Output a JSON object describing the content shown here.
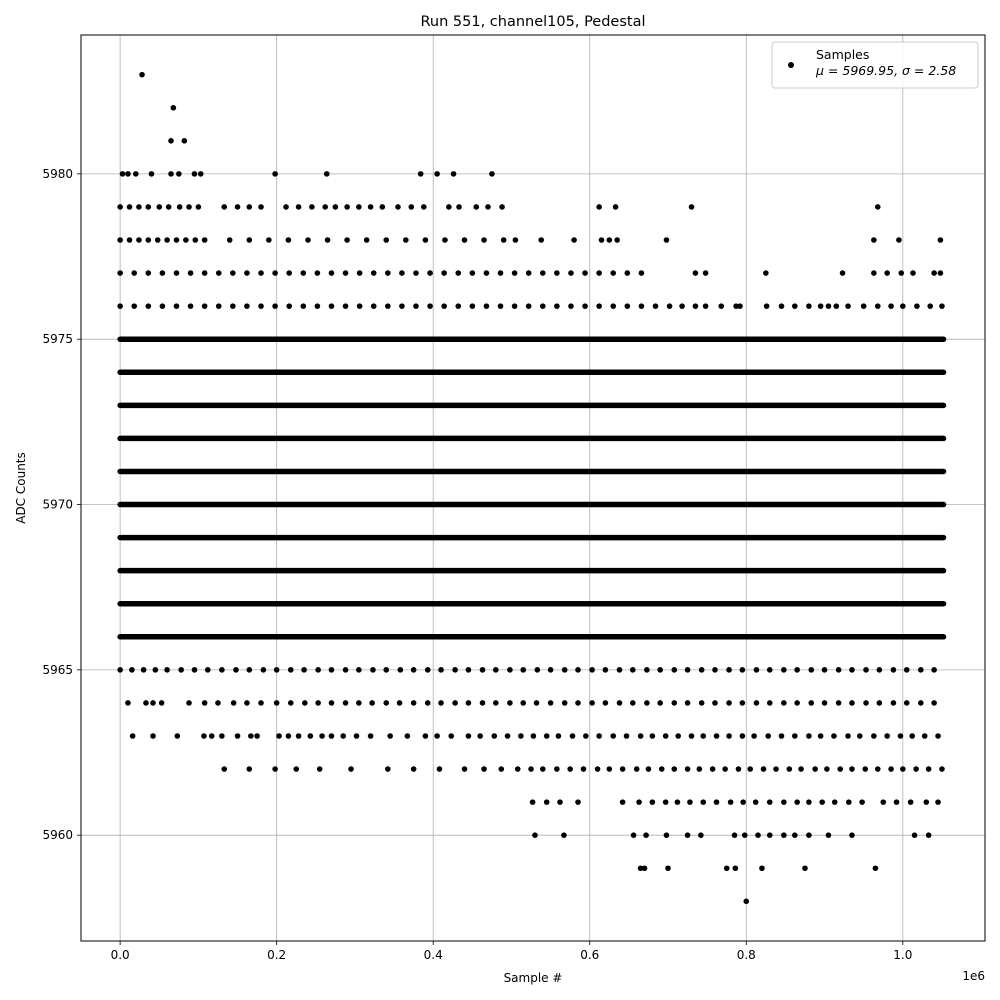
{
  "chart_data": {
    "type": "scatter",
    "title": "Run 551, channel105, Pedestal",
    "xlabel": "Sample #",
    "ylabel": "ADC Counts",
    "x_offset_label": "1e6",
    "xlim": [
      -50000,
      1105000
    ],
    "ylim": [
      5956.8,
      5984.2
    ],
    "x_ticks": [
      0.0,
      0.2,
      0.4,
      0.6,
      0.8,
      1.0
    ],
    "x_tick_labels": [
      "0.0",
      "0.2",
      "0.4",
      "0.6",
      "0.8",
      "1.0"
    ],
    "y_ticks": [
      5960,
      5965,
      5970,
      5975,
      5980
    ],
    "y_tick_labels": [
      "5960",
      "5965",
      "5970",
      "5975",
      "5980"
    ],
    "grid": true,
    "legend": {
      "placement": "top-right",
      "series_label": "Samples",
      "stats_label": "μ = 5969.95, σ = 2.58"
    },
    "marker_color": "#000000",
    "series": [
      {
        "name": "Samples",
        "x_max": 1052000,
        "continuous_levels": [
          {
            "y": 5966,
            "x_start": 0,
            "x_end": 1052000,
            "density": "moderate"
          },
          {
            "y": 5967,
            "x_start": 0,
            "x_end": 1052000,
            "density": "full"
          },
          {
            "y": 5968,
            "x_start": 0,
            "x_end": 1052000,
            "density": "full"
          },
          {
            "y": 5969,
            "x_start": 0,
            "x_end": 1052000,
            "density": "full"
          },
          {
            "y": 5970,
            "x_start": 0,
            "x_end": 1052000,
            "density": "full"
          },
          {
            "y": 5971,
            "x_start": 0,
            "x_end": 1052000,
            "density": "full"
          },
          {
            "y": 5972,
            "x_start": 0,
            "x_end": 1052000,
            "density": "full"
          },
          {
            "y": 5973,
            "x_start": 0,
            "x_end": 1052000,
            "density": "full"
          },
          {
            "y": 5974,
            "x_start": 0,
            "x_end": 1052000,
            "density": "full"
          },
          {
            "y": 5975,
            "x_start": 0,
            "x_end": 1052000,
            "density": "full"
          }
        ],
        "sparse_levels": [
          {
            "y": 5963,
            "points": [
              16000,
              42000,
              73000,
              107000,
              117000,
              130000,
              150000,
              167000,
              175000,
              203000,
              215000,
              228000,
              243000,
              258000,
              270000,
              285000,
              302000,
              320000,
              345000,
              367000,
              390000,
              405000,
              423000,
              445000,
              460000,
              478000,
              495000,
              512000,
              528000,
              545000,
              560000,
              578000,
              595000,
              612000,
              630000,
              647000,
              665000,
              680000,
              697000,
              713000,
              730000,
              745000,
              762000,
              778000,
              795000,
              810000,
              828000,
              845000,
              862000,
              880000,
              895000,
              912000,
              930000,
              945000,
              963000,
              980000,
              997000,
              1012000,
              1028000,
              1045000
            ]
          },
          {
            "y": 5962,
            "points": [
              133000,
              165000,
              198000,
              225000,
              255000,
              295000,
              342000,
              375000,
              408000,
              440000,
              465000,
              487000,
              508000,
              525000,
              540000,
              558000,
              575000,
              592000,
              610000,
              625000,
              642000,
              660000,
              675000,
              692000,
              708000,
              725000,
              740000,
              757000,
              773000,
              790000,
              805000,
              822000,
              838000,
              855000,
              870000,
              888000,
              903000,
              920000,
              935000,
              952000,
              968000,
              985000,
              1000000,
              1017000,
              1033000,
              1050000
            ]
          },
          {
            "y": 5961,
            "points": [
              527000,
              545000,
              562000,
              585000,
              642000,
              663000,
              680000,
              697000,
              712000,
              728000,
              745000,
              762000,
              780000,
              796000,
              812000,
              830000,
              848000,
              865000,
              880000,
              897000,
              913000,
              931000,
              948000,
              975000,
              992000,
              1010000,
              1030000,
              1045000
            ]
          },
          {
            "y": 5960,
            "points": [
              530000,
              567000,
              656000,
              672000,
              698000,
              725000,
              742000,
              785000,
              798000,
              815000,
              830000,
              848000,
              862000,
              880000,
              905000,
              935000,
              1015000,
              1033000
            ]
          },
          {
            "y": 5959,
            "points": [
              665000,
              670000,
              700000,
              775000,
              786000,
              820000,
              875000,
              965000
            ]
          },
          {
            "y": 5958,
            "points": [
              800000
            ]
          },
          {
            "y": 5964,
            "points": [
              10000,
              33000,
              42000,
              53000,
              88000,
              108000,
              125000,
              145000,
              162000,
              180000,
              200000,
              218000,
              236000,
              253000,
              270000,
              288000,
              305000,
              322000,
              340000,
              357000,
              375000,
              393000,
              410000,
              428000,
              445000,
              463000,
              480000,
              498000,
              515000,
              532000,
              550000,
              568000,
              585000,
              603000,
              620000,
              638000,
              655000,
              673000,
              690000,
              708000,
              725000,
              743000,
              760000,
              778000,
              795000,
              813000,
              830000,
              848000,
              865000,
              883000,
              900000,
              918000,
              935000,
              953000,
              970000,
              988000,
              1005000,
              1023000,
              1040000
            ]
          },
          {
            "y": 5965,
            "points": [
              0,
              15000,
              30000,
              45000,
              60000,
              78000,
              95000,
              112000,
              130000,
              148000,
              165000,
              183000,
              200000,
              218000,
              235000,
              253000,
              270000,
              288000,
              305000,
              323000,
              340000,
              358000,
              375000,
              393000,
              410000,
              428000,
              445000,
              463000,
              480000,
              498000,
              515000,
              533000,
              550000,
              568000,
              585000,
              603000,
              620000,
              638000,
              655000,
              673000,
              690000,
              708000,
              725000,
              743000,
              760000,
              778000,
              795000,
              813000,
              830000,
              848000,
              865000,
              883000,
              900000,
              918000,
              935000,
              953000,
              970000,
              988000,
              1005000,
              1023000,
              1040000
            ]
          },
          {
            "y": 5976,
            "points": [
              0,
              18000,
              36000,
              54000,
              72000,
              90000,
              108000,
              126000,
              144000,
              162000,
              180000,
              198000,
              216000,
              234000,
              252000,
              270000,
              288000,
              306000,
              324000,
              342000,
              360000,
              378000,
              396000,
              414000,
              432000,
              450000,
              468000,
              486000,
              504000,
              522000,
              540000,
              558000,
              576000,
              594000,
              612000,
              630000,
              648000,
              666000,
              684000,
              702000,
              718000,
              735000,
              748000,
              768000,
              787000,
              792000,
              826000,
              845000,
              862000,
              880000,
              895000,
              905000,
              915000,
              930000,
              950000,
              968000,
              985000,
              1000000,
              1018000,
              1035000,
              1050000
            ]
          },
          {
            "y": 5977,
            "points": [
              0,
              18000,
              36000,
              54000,
              72000,
              90000,
              108000,
              126000,
              144000,
              162000,
              180000,
              198000,
              216000,
              234000,
              252000,
              270000,
              288000,
              306000,
              324000,
              342000,
              360000,
              378000,
              396000,
              414000,
              432000,
              450000,
              468000,
              486000,
              504000,
              522000,
              540000,
              558000,
              576000,
              594000,
              612000,
              630000,
              648000,
              666000,
              735000,
              748000,
              825000,
              923000,
              963000,
              980000,
              998000,
              1013000,
              1040000,
              1048000
            ]
          },
          {
            "y": 5978,
            "points": [
              0,
              12000,
              24000,
              36000,
              48000,
              60000,
              72000,
              84000,
              96000,
              108000,
              140000,
              165000,
              190000,
              215000,
              240000,
              265000,
              290000,
              315000,
              340000,
              365000,
              390000,
              415000,
              440000,
              465000,
              490000,
              505000,
              538000,
              580000,
              615000,
              625000,
              635000,
              698000,
              963000,
              995000,
              1048000
            ]
          },
          {
            "y": 5979,
            "points": [
              0,
              12000,
              24000,
              36000,
              50000,
              62000,
              76000,
              88000,
              100000,
              133000,
              150000,
              165000,
              180000,
              212000,
              228000,
              245000,
              262000,
              275000,
              290000,
              305000,
              320000,
              335000,
              355000,
              372000,
              388000,
              420000,
              433000,
              455000,
              470000,
              488000,
              612000,
              633000,
              730000,
              968000
            ]
          },
          {
            "y": 5980,
            "points": [
              3000,
              10000,
              20000,
              40000,
              65000,
              75000,
              95000,
              103000,
              198000,
              264000,
              384000,
              405000,
              426000,
              475000
            ]
          },
          {
            "y": 5981,
            "points": [
              65000,
              82000
            ]
          },
          {
            "y": 5982,
            "points": [
              68000
            ]
          },
          {
            "y": 5983,
            "points": [
              28000
            ]
          }
        ]
      }
    ]
  }
}
